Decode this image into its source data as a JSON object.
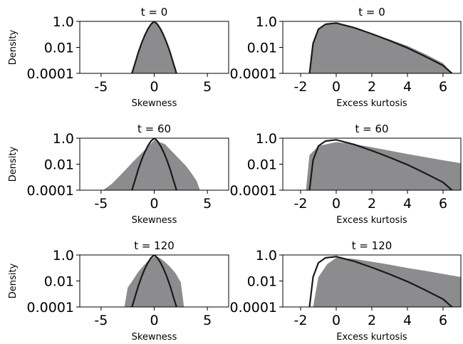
{
  "chart_data": [
    {
      "type": "area",
      "title": "t = 0",
      "xlabel": "Skewness",
      "ylabel": "Density",
      "xlim": [
        -7,
        7
      ],
      "ylim": [
        0.0001,
        1.0
      ],
      "yscale": "log",
      "xticks": [
        -5,
        0,
        5
      ],
      "xtick_labels": [
        "-5",
        "0",
        "5"
      ],
      "yticks": [
        1.0,
        0.01,
        0.0001
      ],
      "ytick_labels": [
        "1.0",
        "0.01",
        "0.0001"
      ],
      "hist_color": "#8c8c8e",
      "line_color": "#1a1a1a",
      "series": [
        {
          "kind": "histogram",
          "x": [
            -2.1,
            -1.8,
            -1.5,
            -1.2,
            -0.9,
            -0.6,
            -0.3,
            0.0,
            0.3,
            0.6,
            0.9,
            1.2,
            1.5,
            1.8,
            2.1
          ],
          "y": [
            0.0001,
            0.0006,
            0.004,
            0.02,
            0.08,
            0.25,
            0.6,
            1.0,
            0.6,
            0.25,
            0.08,
            0.02,
            0.004,
            0.0006,
            0.0001
          ]
        },
        {
          "kind": "line",
          "x": [
            -2.1,
            -1.8,
            -1.5,
            -1.2,
            -0.9,
            -0.6,
            -0.3,
            0.0,
            0.3,
            0.6,
            0.9,
            1.2,
            1.5,
            1.8,
            2.1
          ],
          "y": [
            0.0001,
            0.0006,
            0.004,
            0.02,
            0.08,
            0.25,
            0.6,
            1.0,
            0.6,
            0.25,
            0.08,
            0.02,
            0.004,
            0.0006,
            0.0001
          ]
        }
      ]
    },
    {
      "type": "area",
      "title": "t = 0",
      "xlabel": "Excess kurtosis",
      "ylabel": "",
      "xlim": [
        -3,
        7
      ],
      "ylim": [
        0.0001,
        1.0
      ],
      "yscale": "log",
      "xticks": [
        -2,
        0,
        2,
        4,
        6
      ],
      "xtick_labels": [
        "-2",
        "0",
        "2",
        "4",
        "6"
      ],
      "yticks": [
        1.0,
        0.01,
        0.0001
      ],
      "ytick_labels": [
        "1.0",
        "0.01",
        "0.0001"
      ],
      "hist_color": "#8c8c8e",
      "line_color": "#1a1a1a",
      "series": [
        {
          "kind": "histogram",
          "x": [
            -1.5,
            -1.3,
            -1.0,
            -0.6,
            0.0,
            1.0,
            2.0,
            3.0,
            4.0,
            5.0,
            6.0,
            6.5
          ],
          "y": [
            0.0001,
            0.02,
            0.25,
            0.6,
            0.75,
            0.35,
            0.12,
            0.04,
            0.013,
            0.003,
            0.0006,
            0.0001
          ]
        },
        {
          "kind": "line",
          "x": [
            -1.5,
            -1.3,
            -1.0,
            -0.6,
            0.0,
            1.0,
            2.0,
            3.0,
            4.0,
            5.0,
            6.0,
            6.5
          ],
          "y": [
            0.0001,
            0.02,
            0.25,
            0.6,
            0.75,
            0.33,
            0.11,
            0.033,
            0.009,
            0.002,
            0.0004,
            0.0001
          ]
        }
      ]
    },
    {
      "type": "area",
      "title": "t = 60",
      "xlabel": "Skewness",
      "ylabel": "Density",
      "xlim": [
        -7,
        7
      ],
      "ylim": [
        0.0001,
        1.0
      ],
      "yscale": "log",
      "xticks": [
        -5,
        0,
        5
      ],
      "xtick_labels": [
        "-5",
        "0",
        "5"
      ],
      "yticks": [
        1.0,
        0.01,
        0.0001
      ],
      "ytick_labels": [
        "1.0",
        "0.01",
        "0.0001"
      ],
      "hist_color": "#8c8c8e",
      "line_color": "#1a1a1a",
      "series": [
        {
          "kind": "histogram",
          "x": [
            -4.8,
            -4.0,
            -3.0,
            -2.0,
            -1.0,
            0.0,
            1.0,
            2.0,
            3.0,
            3.5,
            4.0,
            4.3
          ],
          "y": [
            0.0001,
            0.0003,
            0.002,
            0.015,
            0.1,
            0.7,
            0.35,
            0.05,
            0.007,
            0.002,
            0.0005,
            0.0001
          ]
        },
        {
          "kind": "line",
          "x": [
            -2.1,
            -1.8,
            -1.5,
            -1.2,
            -0.9,
            -0.6,
            -0.3,
            0.0,
            0.3,
            0.6,
            0.9,
            1.2,
            1.5,
            1.8,
            2.1
          ],
          "y": [
            0.0001,
            0.0006,
            0.004,
            0.02,
            0.08,
            0.25,
            0.6,
            1.0,
            0.6,
            0.25,
            0.08,
            0.02,
            0.004,
            0.0006,
            0.0001
          ]
        }
      ]
    },
    {
      "type": "area",
      "title": "t = 60",
      "xlabel": "Excess kurtosis",
      "ylabel": "",
      "xlim": [
        -3,
        7
      ],
      "ylim": [
        0.0001,
        1.0
      ],
      "yscale": "log",
      "xticks": [
        -2,
        0,
        2,
        4,
        6
      ],
      "xtick_labels": [
        "-2",
        "0",
        "2",
        "4",
        "6"
      ],
      "yticks": [
        1.0,
        0.01,
        0.0001
      ],
      "ytick_labels": [
        "1.0",
        "0.01",
        "0.0001"
      ],
      "hist_color": "#8c8c8e",
      "line_color": "#1a1a1a",
      "series": [
        {
          "kind": "histogram",
          "x": [
            -1.7,
            -1.5,
            -1.0,
            0.0,
            1.0,
            2.0,
            3.0,
            4.0,
            5.0,
            6.0,
            7.0
          ],
          "y": [
            0.0001,
            0.05,
            0.25,
            0.5,
            0.35,
            0.2,
            0.11,
            0.06,
            0.035,
            0.02,
            0.012
          ]
        },
        {
          "kind": "line",
          "x": [
            -1.5,
            -1.3,
            -1.0,
            -0.6,
            0.0,
            1.0,
            2.0,
            3.0,
            4.0,
            5.0,
            6.0,
            6.5
          ],
          "y": [
            0.0001,
            0.02,
            0.25,
            0.6,
            0.75,
            0.33,
            0.11,
            0.033,
            0.009,
            0.002,
            0.0004,
            0.0001
          ]
        }
      ]
    },
    {
      "type": "area",
      "title": "t = 120",
      "xlabel": "Skewness",
      "ylabel": "Density",
      "xlim": [
        -7,
        7
      ],
      "ylim": [
        0.0001,
        1.0
      ],
      "yscale": "log",
      "xticks": [
        -5,
        0,
        5
      ],
      "xtick_labels": [
        "-5",
        "0",
        "5"
      ],
      "yticks": [
        1.0,
        0.01,
        0.0001
      ],
      "ytick_labels": [
        "1.0",
        "0.01",
        "0.0001"
      ],
      "hist_color": "#8c8c8e",
      "line_color": "#1a1a1a",
      "series": [
        {
          "kind": "histogram",
          "x": [
            -2.8,
            -2.5,
            -2.0,
            -1.5,
            -1.0,
            -0.5,
            0.0,
            0.5,
            1.0,
            1.5,
            2.0,
            2.5,
            2.8
          ],
          "y": [
            0.0001,
            0.003,
            0.012,
            0.05,
            0.15,
            0.4,
            0.7,
            0.6,
            0.3,
            0.12,
            0.04,
            0.008,
            0.0001
          ]
        },
        {
          "kind": "line",
          "x": [
            -2.1,
            -1.8,
            -1.5,
            -1.2,
            -0.9,
            -0.6,
            -0.3,
            0.0,
            0.3,
            0.6,
            0.9,
            1.2,
            1.5,
            1.8,
            2.1
          ],
          "y": [
            0.0001,
            0.0006,
            0.004,
            0.02,
            0.08,
            0.25,
            0.6,
            1.0,
            0.6,
            0.25,
            0.08,
            0.02,
            0.004,
            0.0006,
            0.0001
          ]
        }
      ]
    },
    {
      "type": "area",
      "title": "t = 120",
      "xlabel": "Excess kurtosis",
      "ylabel": "",
      "xlim": [
        -3,
        7
      ],
      "ylim": [
        0.0001,
        1.0
      ],
      "yscale": "log",
      "xticks": [
        -2,
        0,
        2,
        4,
        6
      ],
      "xtick_labels": [
        "-2",
        "0",
        "2",
        "4",
        "6"
      ],
      "yticks": [
        1.0,
        0.01,
        0.0001
      ],
      "ytick_labels": [
        "1.0",
        "0.01",
        "0.0001"
      ],
      "hist_color": "#8c8c8e",
      "line_color": "#1a1a1a",
      "series": [
        {
          "kind": "histogram",
          "x": [
            -1.3,
            -1.0,
            -0.5,
            0.0,
            1.0,
            2.0,
            3.0,
            4.0,
            5.0,
            6.0,
            7.0
          ],
          "y": [
            0.0001,
            0.02,
            0.2,
            0.6,
            0.5,
            0.3,
            0.18,
            0.1,
            0.06,
            0.035,
            0.02
          ]
        },
        {
          "kind": "line",
          "x": [
            -1.5,
            -1.3,
            -1.0,
            -0.6,
            0.0,
            1.0,
            2.0,
            3.0,
            4.0,
            5.0,
            6.0,
            6.5
          ],
          "y": [
            0.0001,
            0.02,
            0.25,
            0.6,
            0.75,
            0.33,
            0.11,
            0.033,
            0.009,
            0.002,
            0.0004,
            0.0001
          ]
        }
      ]
    }
  ]
}
